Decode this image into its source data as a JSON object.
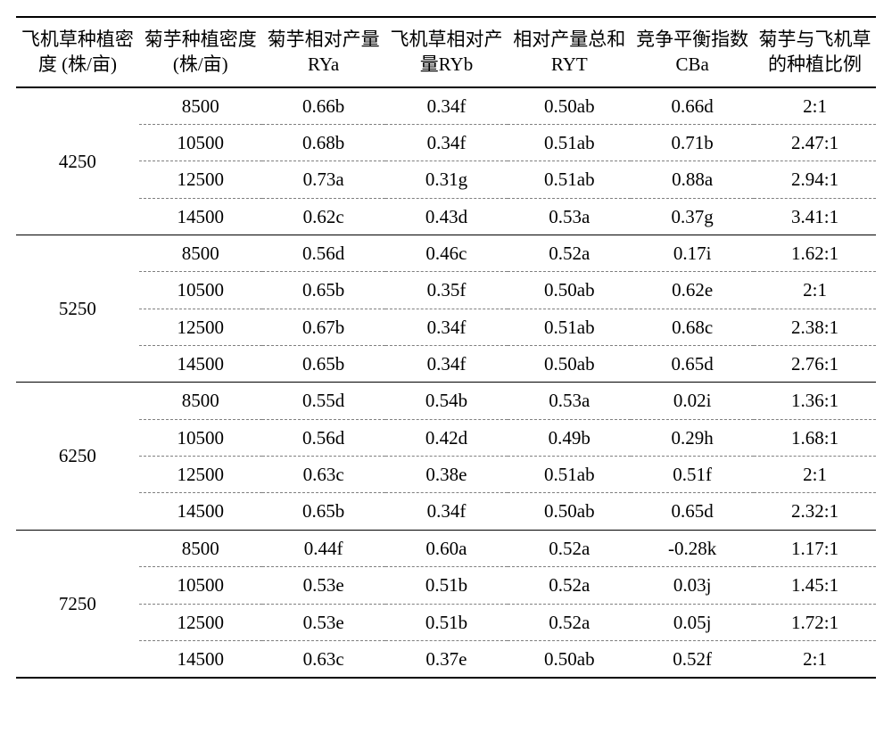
{
  "table": {
    "columns": [
      "飞机草种植密度 (株/亩)",
      "菊芋种植密度 (株/亩)",
      "菊芋相对产量 RYa",
      "飞机草相对产量RYb",
      "相对产量总和 RYT",
      "竞争平衡指数 CBa",
      "菊芋与飞机草的种植比例"
    ],
    "col_widths_pct": [
      14.3,
      14.3,
      14.3,
      14.3,
      14.3,
      14.3,
      14.2
    ],
    "groups": [
      {
        "label": "4250",
        "rows": [
          [
            "8500",
            "0.66b",
            "0.34f",
            "0.50ab",
            "0.66d",
            "2:1"
          ],
          [
            "10500",
            "0.68b",
            "0.34f",
            "0.51ab",
            "0.71b",
            "2.47:1"
          ],
          [
            "12500",
            "0.73a",
            "0.31g",
            "0.51ab",
            "0.88a",
            "2.94:1"
          ],
          [
            "14500",
            "0.62c",
            "0.43d",
            "0.53a",
            "0.37g",
            "3.41:1"
          ]
        ]
      },
      {
        "label": "5250",
        "rows": [
          [
            "8500",
            "0.56d",
            "0.46c",
            "0.52a",
            "0.17i",
            "1.62:1"
          ],
          [
            "10500",
            "0.65b",
            "0.35f",
            "0.50ab",
            "0.62e",
            "2:1"
          ],
          [
            "12500",
            "0.67b",
            "0.34f",
            "0.51ab",
            "0.68c",
            "2.38:1"
          ],
          [
            "14500",
            "0.65b",
            "0.34f",
            "0.50ab",
            "0.65d",
            "2.76:1"
          ]
        ]
      },
      {
        "label": "6250",
        "rows": [
          [
            "8500",
            "0.55d",
            "0.54b",
            "0.53a",
            "0.02i",
            "1.36:1"
          ],
          [
            "10500",
            "0.56d",
            "0.42d",
            "0.49b",
            "0.29h",
            "1.68:1"
          ],
          [
            "12500",
            "0.63c",
            "0.38e",
            "0.51ab",
            "0.51f",
            "2:1"
          ],
          [
            "14500",
            "0.65b",
            "0.34f",
            "0.50ab",
            "0.65d",
            "2.32:1"
          ]
        ]
      },
      {
        "label": "7250",
        "rows": [
          [
            "8500",
            "0.44f",
            "0.60a",
            "0.52a",
            "-0.28k",
            "1.17:1"
          ],
          [
            "10500",
            "0.53e",
            "0.51b",
            "0.52a",
            "0.03j",
            "1.45:1"
          ],
          [
            "12500",
            "0.53e",
            "0.51b",
            "0.52a",
            "0.05j",
            "1.72:1"
          ],
          [
            "14500",
            "0.63c",
            "0.37e",
            "0.50ab",
            "0.52f",
            "2:1"
          ]
        ]
      }
    ],
    "style": {
      "font_family": "Times New Roman / SimSun",
      "header_fontsize_pt": 16,
      "body_fontsize_pt": 16,
      "text_color": "#000000",
      "background_color": "#ffffff",
      "top_rule": "2px solid #000",
      "header_rule": "2px solid #000",
      "group_rule": "1.5px solid #000",
      "row_rule": "1px dashed #808080",
      "bottom_rule": "2px solid #000"
    }
  }
}
